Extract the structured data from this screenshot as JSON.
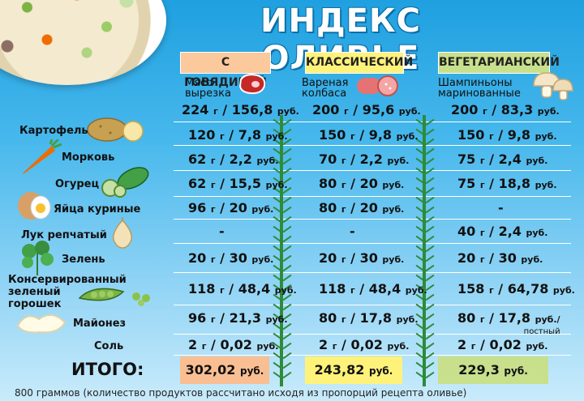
{
  "title": "ИНДЕКС ОЛИВЬЕ",
  "columns": [
    {
      "header": "С ГОВЯДИНОЙ",
      "main_ingredient": [
        "Мясо",
        "вырезка"
      ],
      "total_value": "302,02",
      "color": "#f9bf92",
      "icon": "meat-steak-icon"
    },
    {
      "header": "КЛАССИЧЕСКИЙ",
      "main_ingredient": [
        "Вареная",
        "колбаса"
      ],
      "total_value": "243,82",
      "color": "#fff27a",
      "icon": "sausage-icon"
    },
    {
      "header": "ВЕГЕТАРИАНСКИЙ",
      "main_ingredient": [
        "Шампиньоны",
        "маринованные"
      ],
      "total_value": "229,3",
      "color": "#c8e08c",
      "icon": "mushroom-icon"
    }
  ],
  "unit_g": "г",
  "unit_rub": "руб.",
  "rows": [
    {
      "label": "",
      "cells": [
        [
          "224",
          "156,8"
        ],
        [
          "200",
          "95,6"
        ],
        [
          "200",
          "83,3"
        ]
      ]
    },
    {
      "label": "Картофель",
      "icon": "potato-icon",
      "cells": [
        [
          "120",
          "7,8"
        ],
        [
          "150",
          "9,8"
        ],
        [
          "150",
          "9,8"
        ]
      ]
    },
    {
      "label": "Морковь",
      "icon": "carrot-icon",
      "cells": [
        [
          "62",
          "2,2"
        ],
        [
          "70",
          "2,2"
        ],
        [
          "75",
          "2,4"
        ]
      ]
    },
    {
      "label": "Огурец",
      "icon": "cucumber-icon",
      "cells": [
        [
          "62",
          "15,5"
        ],
        [
          "80",
          "20"
        ],
        [
          "75",
          "18,8"
        ]
      ]
    },
    {
      "label": "Яйца куриные",
      "icon": "egg-icon",
      "cells": [
        [
          "96",
          "20"
        ],
        [
          "80",
          "20"
        ],
        null
      ]
    },
    {
      "label": "Лук репчатый",
      "icon": "onion-icon",
      "cells": [
        null,
        null,
        [
          "40",
          "2,4"
        ]
      ]
    },
    {
      "label": "Зелень",
      "icon": "parsley-icon",
      "cells": [
        [
          "20",
          "30"
        ],
        [
          "20",
          "30"
        ],
        [
          "20",
          "30"
        ]
      ]
    },
    {
      "label": [
        "Консервированный",
        "зеленый",
        "горошек"
      ],
      "icon": "peas-icon",
      "cells": [
        [
          "118",
          "48,4"
        ],
        [
          "118",
          "48,4"
        ],
        [
          "158",
          "64,78"
        ]
      ]
    },
    {
      "label": "Майонез",
      "icon": "mayonnaise-icon",
      "cells": [
        [
          "96",
          "21,3"
        ],
        [
          "80",
          "17,8"
        ],
        [
          "80",
          "17,8",
          "постный"
        ]
      ]
    },
    {
      "label": "Соль",
      "cells": [
        [
          "2",
          "0,02"
        ],
        [
          "2",
          "0,02"
        ],
        [
          "2",
          "0,02"
        ]
      ]
    }
  ],
  "dash": "-",
  "total_label": "ИТОГО:",
  "footnote": "800 граммов (количество продуктов рассчитано исходя из пропорций рецепта оливье)"
}
